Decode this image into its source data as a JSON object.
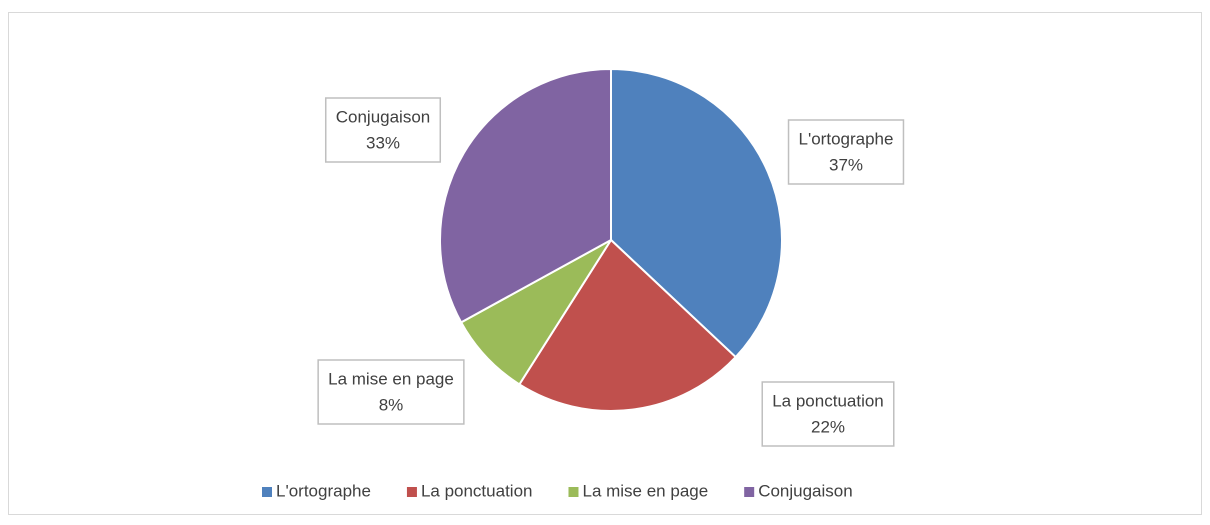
{
  "chart_data": {
    "type": "pie",
    "categories": [
      "L'ortographe",
      "La ponctuation",
      "La mise en page",
      "Conjugaison"
    ],
    "values": [
      37,
      22,
      8,
      33
    ],
    "value_labels": [
      "37%",
      "22%",
      "8%",
      "33%"
    ],
    "colors": [
      "#4f81bd",
      "#c0504d",
      "#9bbb59",
      "#8064a2"
    ],
    "legend": "bottom"
  }
}
